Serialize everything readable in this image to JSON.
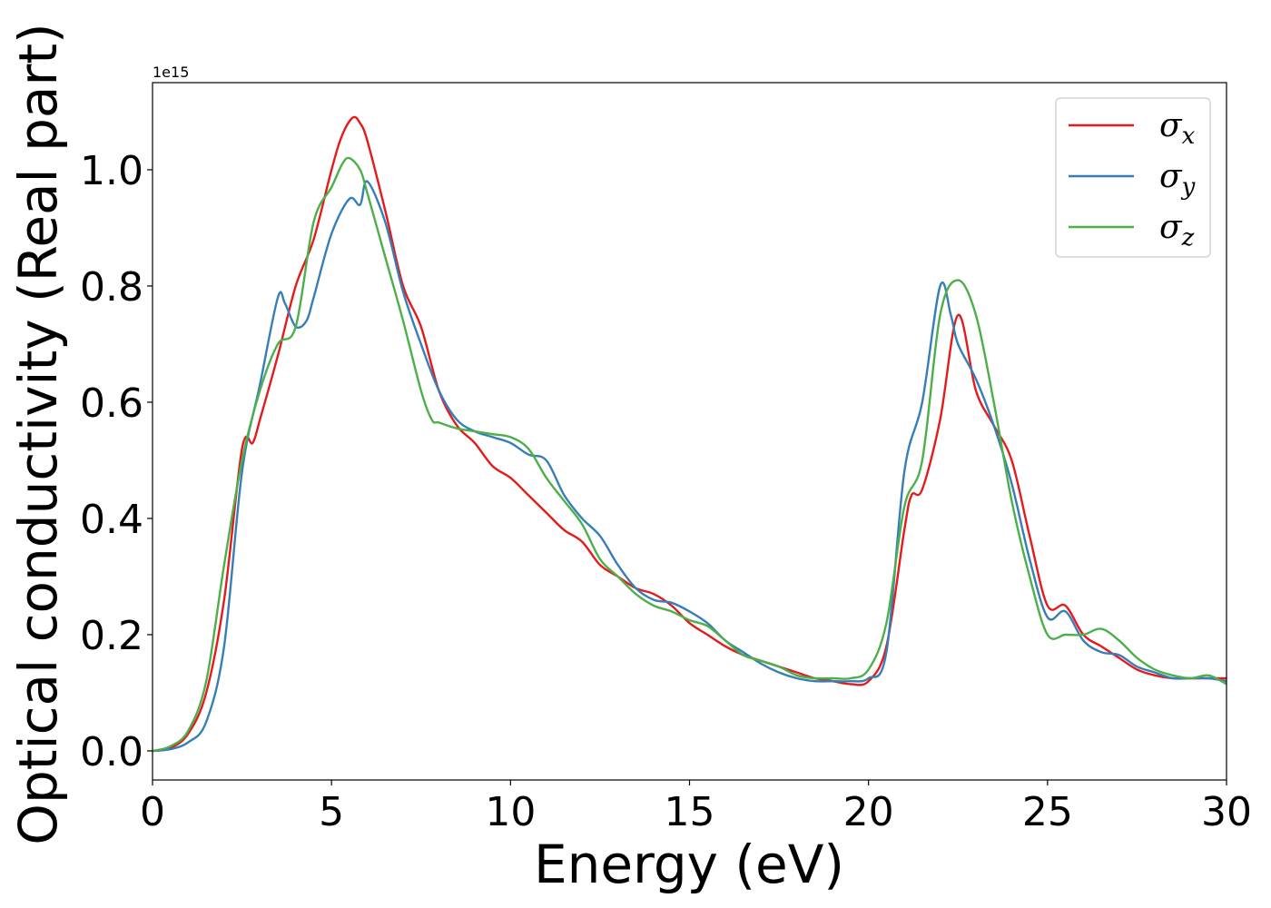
{
  "chart_data": {
    "type": "line",
    "xlabel": "Energy (eV)",
    "ylabel": "Optical conductivity (Real part)",
    "offset_text": "1e15",
    "xlim": [
      0,
      30
    ],
    "ylim": [
      -0.05,
      1.15
    ],
    "x_ticks": [
      0,
      5,
      10,
      15,
      20,
      25,
      30
    ],
    "x_tick_labels": [
      "0",
      "5",
      "10",
      "15",
      "20",
      "25",
      "30"
    ],
    "y_ticks": [
      0.0,
      0.2,
      0.4,
      0.6,
      0.8,
      1.0
    ],
    "y_tick_labels": [
      "0.0",
      "0.2",
      "0.4",
      "0.6",
      "0.8",
      "1.0"
    ],
    "grid": false,
    "legend_position": "top-right",
    "series": [
      {
        "name": "σx",
        "legend_main": "σ",
        "legend_sub": "x",
        "color": "#e41a1c",
        "x": [
          0,
          0.5,
          1.0,
          1.5,
          2.0,
          2.5,
          2.8,
          3.0,
          3.5,
          4.0,
          4.5,
          5.0,
          5.3,
          5.6,
          5.8,
          6.0,
          6.5,
          7.0,
          7.5,
          8.0,
          8.5,
          9.0,
          9.5,
          10.0,
          10.5,
          11.0,
          11.5,
          12.0,
          12.5,
          13.0,
          13.5,
          14.0,
          14.5,
          15.0,
          15.5,
          16.0,
          16.5,
          17.0,
          17.5,
          18.0,
          18.5,
          19.0,
          19.5,
          20.0,
          20.5,
          21.0,
          21.2,
          21.5,
          22.0,
          22.5,
          23.0,
          23.5,
          24.0,
          24.5,
          25.0,
          25.5,
          26.0,
          26.5,
          27.0,
          27.5,
          28.0,
          28.5,
          29.0,
          29.5,
          30.0
        ],
        "y": [
          0.0,
          0.005,
          0.03,
          0.1,
          0.26,
          0.52,
          0.53,
          0.57,
          0.68,
          0.8,
          0.88,
          1.0,
          1.06,
          1.09,
          1.08,
          1.05,
          0.93,
          0.8,
          0.73,
          0.62,
          0.56,
          0.53,
          0.49,
          0.47,
          0.44,
          0.41,
          0.38,
          0.36,
          0.32,
          0.3,
          0.28,
          0.27,
          0.25,
          0.22,
          0.2,
          0.18,
          0.165,
          0.155,
          0.145,
          0.135,
          0.125,
          0.12,
          0.115,
          0.12,
          0.18,
          0.38,
          0.44,
          0.45,
          0.57,
          0.75,
          0.62,
          0.56,
          0.5,
          0.37,
          0.25,
          0.25,
          0.2,
          0.18,
          0.16,
          0.14,
          0.13,
          0.125,
          0.125,
          0.125,
          0.125
        ]
      },
      {
        "name": "σy",
        "legend_main": "σ",
        "legend_sub": "y",
        "color": "#377eb8",
        "x": [
          0,
          0.5,
          1.0,
          1.5,
          2.0,
          2.5,
          3.0,
          3.5,
          3.7,
          4.0,
          4.3,
          4.5,
          5.0,
          5.5,
          5.8,
          6.0,
          6.5,
          7.0,
          7.5,
          8.0,
          8.5,
          9.0,
          9.5,
          10.0,
          10.5,
          11.0,
          11.5,
          12.0,
          12.5,
          13.0,
          13.5,
          14.0,
          14.5,
          15.0,
          15.5,
          16.0,
          16.5,
          17.0,
          17.5,
          18.0,
          18.5,
          19.0,
          19.5,
          20.0,
          20.5,
          21.0,
          21.5,
          22.0,
          22.3,
          22.5,
          23.0,
          23.5,
          24.0,
          24.5,
          25.0,
          25.5,
          26.0,
          26.5,
          27.0,
          27.5,
          28.0,
          28.5,
          29.0,
          29.5,
          30.0
        ],
        "y": [
          0.0,
          0.003,
          0.015,
          0.05,
          0.18,
          0.48,
          0.63,
          0.78,
          0.77,
          0.73,
          0.74,
          0.78,
          0.89,
          0.95,
          0.94,
          0.98,
          0.91,
          0.79,
          0.7,
          0.62,
          0.57,
          0.55,
          0.54,
          0.53,
          0.51,
          0.5,
          0.44,
          0.4,
          0.37,
          0.32,
          0.28,
          0.26,
          0.255,
          0.24,
          0.22,
          0.19,
          0.17,
          0.15,
          0.135,
          0.125,
          0.12,
          0.12,
          0.12,
          0.125,
          0.17,
          0.48,
          0.6,
          0.8,
          0.75,
          0.7,
          0.64,
          0.56,
          0.46,
          0.33,
          0.23,
          0.24,
          0.19,
          0.17,
          0.165,
          0.145,
          0.135,
          0.125,
          0.125,
          0.125,
          0.12
        ]
      },
      {
        "name": "σz",
        "legend_main": "σ",
        "legend_sub": "z",
        "color": "#4daf4a",
        "x": [
          0,
          0.5,
          1.0,
          1.5,
          2.0,
          2.5,
          3.0,
          3.5,
          4.0,
          4.5,
          5.0,
          5.3,
          5.5,
          5.8,
          6.0,
          6.5,
          7.0,
          7.5,
          7.8,
          8.0,
          8.5,
          9.0,
          9.5,
          10.0,
          10.5,
          11.0,
          11.5,
          12.0,
          12.5,
          13.0,
          13.5,
          14.0,
          14.5,
          15.0,
          15.5,
          16.0,
          16.5,
          17.0,
          17.5,
          18.0,
          18.5,
          19.0,
          19.5,
          20.0,
          20.5,
          21.0,
          21.5,
          22.0,
          22.5,
          23.0,
          23.5,
          24.0,
          24.5,
          25.0,
          25.5,
          26.0,
          26.5,
          27.0,
          27.5,
          28.0,
          28.5,
          29.0,
          29.5,
          30.0
        ],
        "y": [
          0.0,
          0.008,
          0.035,
          0.12,
          0.32,
          0.5,
          0.62,
          0.7,
          0.73,
          0.91,
          0.97,
          1.01,
          1.02,
          1.0,
          0.96,
          0.85,
          0.74,
          0.62,
          0.57,
          0.565,
          0.555,
          0.55,
          0.545,
          0.54,
          0.52,
          0.47,
          0.43,
          0.39,
          0.33,
          0.3,
          0.27,
          0.25,
          0.24,
          0.225,
          0.215,
          0.19,
          0.165,
          0.155,
          0.145,
          0.13,
          0.125,
          0.125,
          0.125,
          0.14,
          0.22,
          0.42,
          0.5,
          0.75,
          0.81,
          0.75,
          0.6,
          0.43,
          0.3,
          0.2,
          0.2,
          0.2,
          0.21,
          0.19,
          0.16,
          0.14,
          0.13,
          0.125,
          0.13,
          0.115
        ]
      }
    ]
  }
}
